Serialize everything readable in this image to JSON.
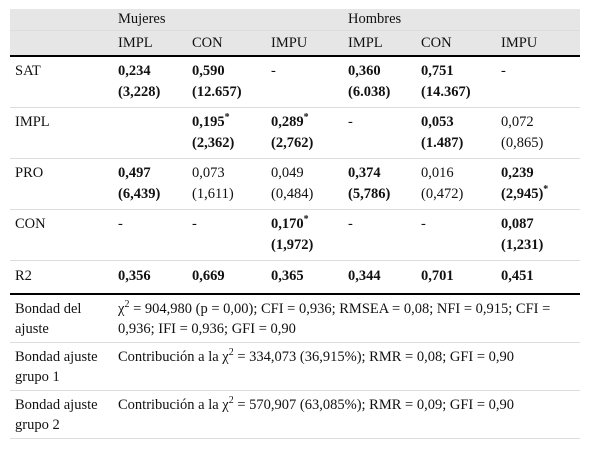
{
  "header": {
    "groups": [
      "Mujeres",
      "Hombres"
    ],
    "columns": [
      "IMPL",
      "CON",
      "IMPU",
      "IMPL",
      "CON",
      "IMPU"
    ]
  },
  "rows": [
    {
      "label": "SAT",
      "cells": [
        {
          "bold": true,
          "lines": [
            "0,234",
            "(3,228)"
          ]
        },
        {
          "bold": true,
          "lines": [
            "0,590",
            "(12.657)"
          ]
        },
        "-",
        {
          "bold": true,
          "lines": [
            "0,360",
            "(6.038)"
          ]
        },
        {
          "bold": true,
          "lines": [
            "0,751",
            "(14.367)"
          ]
        },
        "-"
      ]
    },
    {
      "label": "IMPL",
      "cells": [
        null,
        {
          "bold": true,
          "lines": [
            {
              "text": "0,195",
              "sup": "*"
            },
            "(2,362)"
          ]
        },
        {
          "bold": true,
          "lines": [
            {
              "text": "0,289",
              "sup": "*"
            },
            "(2,762)"
          ]
        },
        "-",
        {
          "bold": true,
          "lines": [
            "0,053",
            "(1.487)"
          ]
        },
        {
          "bold": false,
          "lines": [
            "0,072",
            "(0,865)"
          ]
        }
      ]
    },
    {
      "label": "PRO",
      "cells": [
        {
          "bold": true,
          "lines": [
            "0,497",
            "(6,439)"
          ]
        },
        {
          "bold": false,
          "lines": [
            "0,073",
            "(1,611)"
          ]
        },
        {
          "bold": false,
          "lines": [
            "0,049",
            "(0,484)"
          ]
        },
        {
          "bold": true,
          "lines": [
            "0,374",
            "(5,786)"
          ]
        },
        {
          "bold": false,
          "lines": [
            "0,016",
            "(0,472)"
          ]
        },
        {
          "bold": true,
          "lines": [
            "0,239",
            {
              "text": "(2,945)",
              "sup": "*"
            }
          ]
        }
      ]
    },
    {
      "label": "CON",
      "cells": [
        "-",
        "-",
        {
          "bold": true,
          "lines": [
            {
              "text": "0,170",
              "sup": "*"
            },
            "(1,972)"
          ]
        },
        "-",
        "-",
        {
          "bold": true,
          "lines": [
            "0,087",
            "(1,231)"
          ]
        }
      ]
    },
    {
      "label": "R2",
      "cells": [
        {
          "bold": true,
          "lines": [
            "0,356"
          ]
        },
        {
          "bold": true,
          "lines": [
            "0,669"
          ]
        },
        {
          "bold": true,
          "lines": [
            "0,365"
          ]
        },
        {
          "bold": true,
          "lines": [
            "0,344"
          ]
        },
        {
          "bold": true,
          "lines": [
            "0,701"
          ]
        },
        {
          "bold": true,
          "lines": [
            "0,451"
          ]
        }
      ]
    }
  ],
  "fit": [
    {
      "label": "Bondad del ajuste",
      "parts": [
        "χ",
        "2",
        " = 904,980 (p = 0,00); CFI = 0,936; RMSEA = 0,08; NFI = 0,915; CFI = 0,936; IFI = 0,936; GFI = 0,90"
      ]
    },
    {
      "label": "Bondad ajuste grupo 1",
      "parts": [
        "Contribución a la χ",
        "2",
        " = 334,073 (36,915%); RMR = 0,08; GFI = 0,90"
      ]
    },
    {
      "label": "Bondad ajuste grupo 2",
      "parts": [
        "Contribución a la χ",
        "2",
        " = 570,907 (63,085%); RMR = 0,09; GFI = 0,90"
      ]
    }
  ]
}
